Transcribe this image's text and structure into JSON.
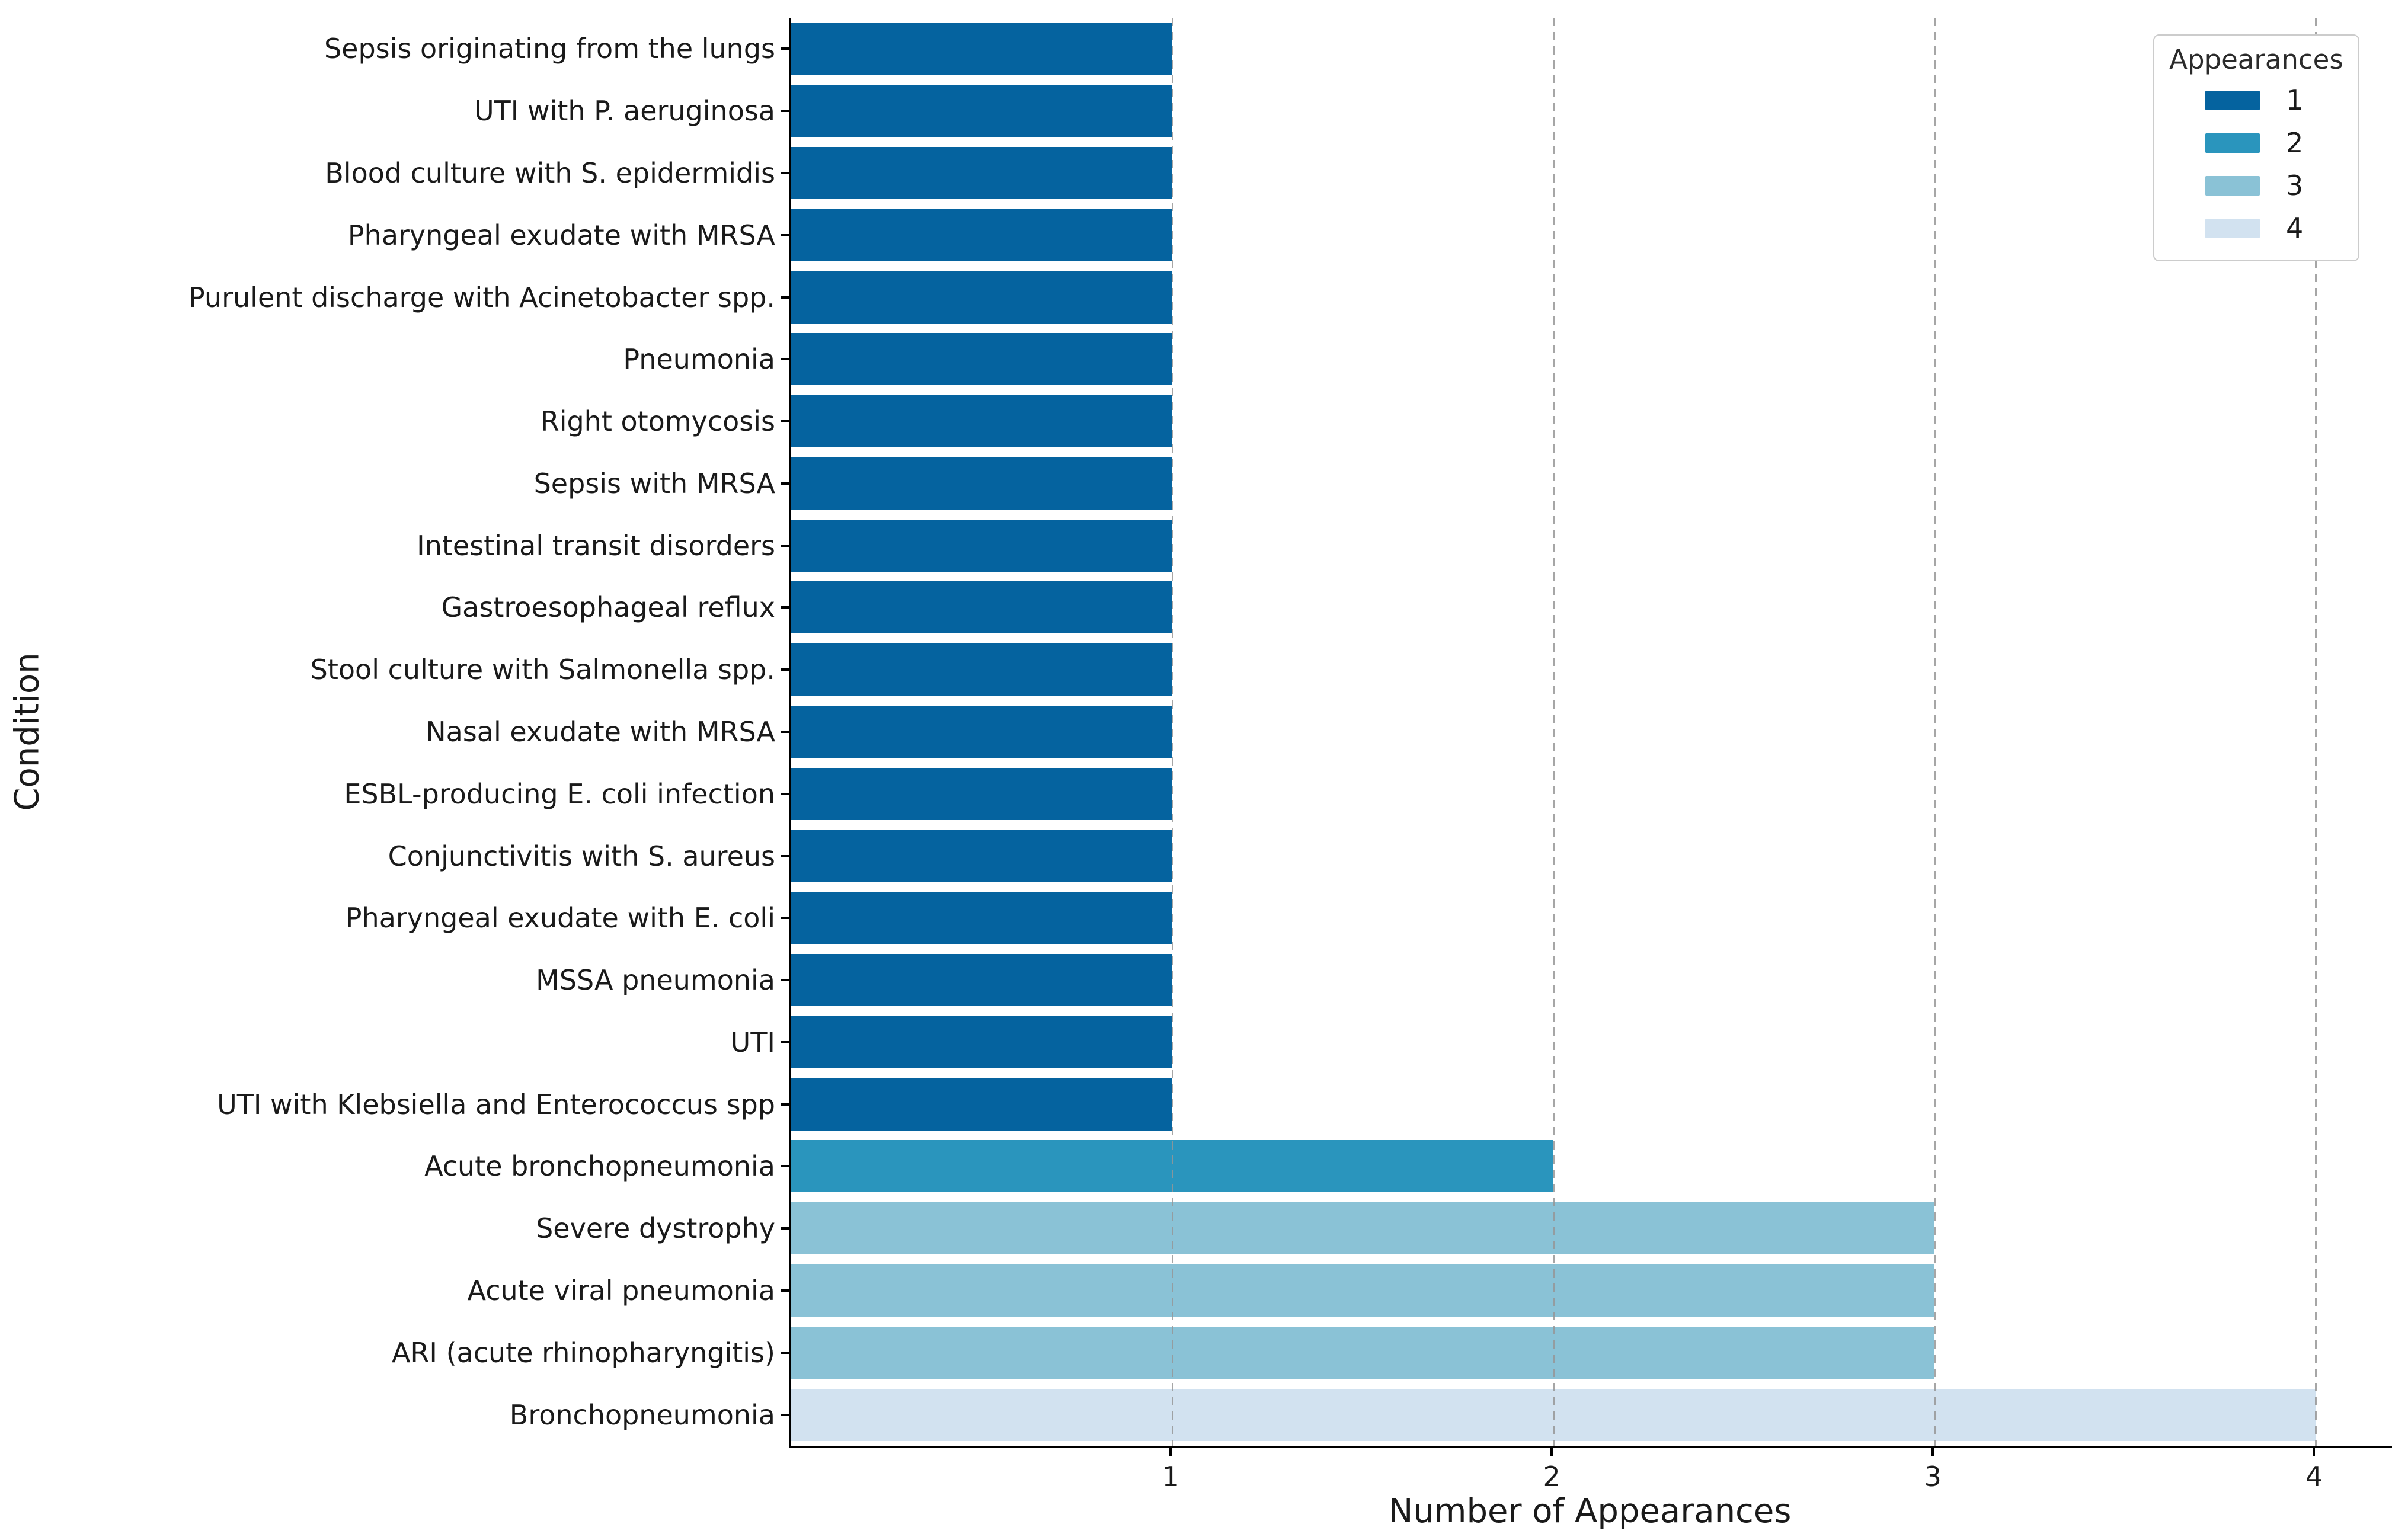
{
  "chart_data": {
    "type": "bar",
    "orientation": "horizontal",
    "title": "",
    "xlabel": "Number of Appearances",
    "ylabel": "Condition",
    "xlim": [
      0,
      4.2
    ],
    "xticks": [
      "1",
      "2",
      "3",
      "4"
    ],
    "grid": "vertical-dashed",
    "legend": {
      "title": "Appearances",
      "position": "upper-right",
      "entries": [
        {
          "label": "1",
          "color": "#05639f"
        },
        {
          "label": "2",
          "color": "#2a95bd"
        },
        {
          "label": "3",
          "color": "#8ac2d6"
        },
        {
          "label": "4",
          "color": "#d2e2f0"
        }
      ]
    },
    "palette_by_value": {
      "1": "#05639f",
      "2": "#2a95bd",
      "3": "#8ac2d6",
      "4": "#d2e2f0"
    },
    "categories": [
      "Sepsis originating from the lungs",
      "UTI with P. aeruginosa",
      "Blood culture with S. epidermidis",
      "Pharyngeal exudate with MRSA",
      "Purulent discharge with Acinetobacter spp.",
      "Pneumonia",
      "Right otomycosis",
      "Sepsis with MRSA",
      "Intestinal transit disorders",
      "Gastroesophageal reflux",
      "Stool culture with Salmonella spp.",
      "Nasal exudate with MRSA",
      "ESBL-producing E. coli infection",
      "Conjunctivitis with S. aureus",
      "Pharyngeal exudate with E. coli",
      "MSSA pneumonia",
      "UTI",
      "UTI with Klebsiella and Enterococcus spp",
      "Acute bronchopneumonia",
      "Severe dystrophy",
      "Acute viral pneumonia",
      "ARI (acute rhinopharyngitis)",
      "Bronchopneumonia"
    ],
    "values": [
      1,
      1,
      1,
      1,
      1,
      1,
      1,
      1,
      1,
      1,
      1,
      1,
      1,
      1,
      1,
      1,
      1,
      1,
      2,
      3,
      3,
      3,
      4
    ]
  }
}
